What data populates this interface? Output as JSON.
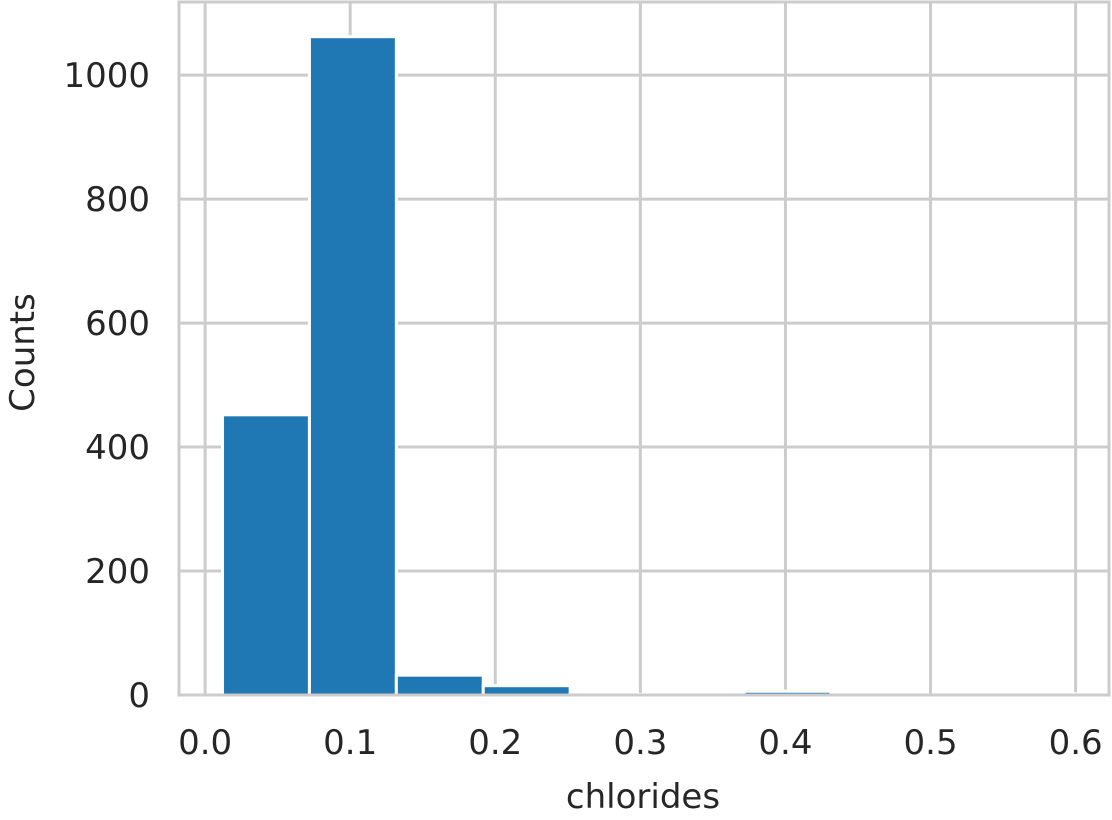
{
  "chart_data": {
    "type": "bar",
    "title": "",
    "xlabel": "chlorides",
    "ylabel": "Counts",
    "xlim": [
      -0.018,
      0.623
    ],
    "ylim": [
      0,
      1118
    ],
    "xticks": [
      "0.0",
      "0.1",
      "0.2",
      "0.3",
      "0.4",
      "0.5",
      "0.6"
    ],
    "yticks": [
      "0",
      "200",
      "400",
      "600",
      "800",
      "1000"
    ],
    "bin_edges": [
      0.012,
      0.0719,
      0.1318,
      0.1917,
      0.2516,
      0.3115,
      0.3714,
      0.4313,
      0.4912,
      0.5511,
      0.611
    ],
    "values": [
      452,
      1062,
      32,
      15,
      1,
      3,
      6,
      0,
      0,
      2
    ],
    "bar_color": "#1f77b4",
    "grid": true,
    "legend": "none"
  }
}
